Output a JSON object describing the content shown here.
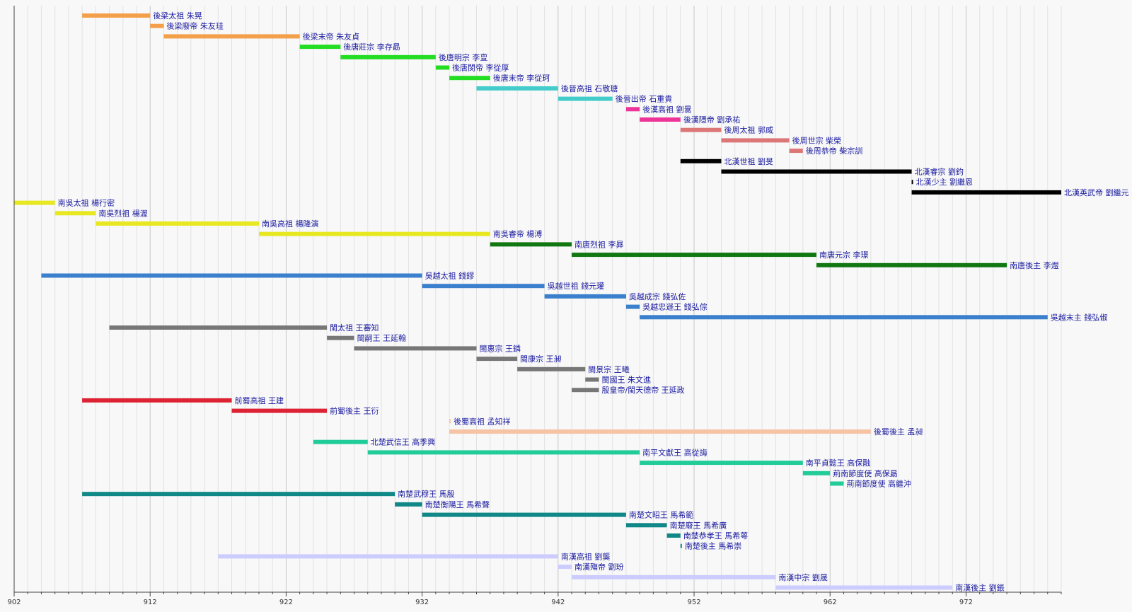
{
  "chart_data": {
    "type": "timeline",
    "xlim": [
      902,
      979
    ],
    "x_ticks": [
      902,
      912,
      922,
      932,
      942,
      952,
      962,
      972
    ],
    "grid": true,
    "bars": [
      {
        "label": "後梁太祖  朱晃",
        "start": 907,
        "end": 912,
        "color": "#f4a04a"
      },
      {
        "label": "後梁廢帝  朱友珪",
        "start": 912,
        "end": 913,
        "color": "#f4a04a"
      },
      {
        "label": "後梁末帝  朱友貞",
        "start": 913,
        "end": 923,
        "color": "#f4a04a"
      },
      {
        "label": "後唐莊宗  李存勗",
        "start": 923,
        "end": 926,
        "color": "#22dd22"
      },
      {
        "label": "後唐明宗  李亶",
        "start": 926,
        "end": 933,
        "color": "#22dd22"
      },
      {
        "label": "後唐閔帝  李從厚",
        "start": 933,
        "end": 934,
        "color": "#22dd22"
      },
      {
        "label": "後唐末帝  李從珂",
        "start": 934,
        "end": 937,
        "color": "#22dd22"
      },
      {
        "label": "後晉高祖  石敬瑭",
        "start": 936,
        "end": 942,
        "color": "#44cccc"
      },
      {
        "label": "後晉出帝  石重貴",
        "start": 942,
        "end": 946,
        "color": "#44cccc"
      },
      {
        "label": "後漢高祖  劉暠",
        "start": 947,
        "end": 948,
        "color": "#ee3399"
      },
      {
        "label": "後漢隱帝  劉承祐",
        "start": 948,
        "end": 951,
        "color": "#ee3399"
      },
      {
        "label": "後周太祖  郭威",
        "start": 951,
        "end": 954,
        "color": "#dd7777"
      },
      {
        "label": "後周世宗  柴榮",
        "start": 954,
        "end": 959,
        "color": "#dd7777"
      },
      {
        "label": "後周恭帝  柴宗訓",
        "start": 959,
        "end": 960,
        "color": "#dd7777"
      },
      {
        "label": "北漢世祖  劉旻",
        "start": 951,
        "end": 954,
        "color": "#000000"
      },
      {
        "label": "北漢睿宗  劉鈞",
        "start": 954,
        "end": 968,
        "color": "#000000"
      },
      {
        "label": "北漢少主  劉繼恩",
        "start": 968,
        "end": 968.1,
        "color": "#000000"
      },
      {
        "label": "北漢英武帝  劉繼元",
        "start": 968,
        "end": 979,
        "color": "#000000"
      },
      {
        "label": "南吳太祖  楊行密",
        "start": 902,
        "end": 905,
        "color": "#e8e822"
      },
      {
        "label": "南吳烈祖  楊渥",
        "start": 905,
        "end": 908,
        "color": "#e8e822"
      },
      {
        "label": "南吳高祖  楊隆演",
        "start": 908,
        "end": 920,
        "color": "#e8e822"
      },
      {
        "label": "南吳睿帝  楊溥",
        "start": 920,
        "end": 937,
        "color": "#e8e822"
      },
      {
        "label": "南唐烈祖  李昪",
        "start": 937,
        "end": 943,
        "color": "#117711"
      },
      {
        "label": "南唐元宗  李璟",
        "start": 943,
        "end": 961,
        "color": "#117711"
      },
      {
        "label": "南唐後主  李煜",
        "start": 961,
        "end": 975,
        "color": "#117711"
      },
      {
        "label": "吳越太祖  錢鏐",
        "start": 904,
        "end": 932,
        "color": "#3a80cc"
      },
      {
        "label": "吳越世祖  錢元瓘",
        "start": 932,
        "end": 941,
        "color": "#3a80cc"
      },
      {
        "label": "吳越成宗  錢弘佐",
        "start": 941,
        "end": 947,
        "color": "#3a80cc"
      },
      {
        "label": "吳越忠遜王  錢弘倧",
        "start": 947,
        "end": 948,
        "color": "#3a80cc"
      },
      {
        "label": "吳越末主  錢弘俶",
        "start": 948,
        "end": 978,
        "color": "#3a80cc"
      },
      {
        "label": "閩太祖  王審知",
        "start": 909,
        "end": 925,
        "color": "#777777"
      },
      {
        "label": "閩嗣王  王延翰",
        "start": 925,
        "end": 927,
        "color": "#777777"
      },
      {
        "label": "閩惠宗  王鏻",
        "start": 927,
        "end": 936,
        "color": "#777777"
      },
      {
        "label": "閩康宗  王昶",
        "start": 936,
        "end": 939,
        "color": "#777777"
      },
      {
        "label": "閩景宗  王曦",
        "start": 939,
        "end": 944,
        "color": "#777777"
      },
      {
        "label": "閩國王  朱文進",
        "start": 944,
        "end": 945,
        "color": "#777777"
      },
      {
        "label": "殷皇帝/閩天德帝  王延政",
        "start": 943,
        "end": 945,
        "color": "#777777"
      },
      {
        "label": "前蜀高祖  王建",
        "start": 907,
        "end": 918,
        "color": "#dd2233"
      },
      {
        "label": "前蜀後主  王衍",
        "start": 918,
        "end": 925,
        "color": "#dd2233"
      },
      {
        "label": "後蜀高祖  孟知祥",
        "start": 934,
        "end": 934,
        "color": "#f6c4a4"
      },
      {
        "label": "後蜀後主  孟昶",
        "start": 934,
        "end": 965,
        "color": "#f6c4a4"
      },
      {
        "label": "北楚武信王  高季興",
        "start": 924,
        "end": 928,
        "color": "#22cc99"
      },
      {
        "label": "南平文獻王  高從誨",
        "start": 928,
        "end": 948,
        "color": "#22cc99"
      },
      {
        "label": "南平貞懿王  高保融",
        "start": 948,
        "end": 960,
        "color": "#22cc99"
      },
      {
        "label": "荊南節度使  高保勗",
        "start": 960,
        "end": 962,
        "color": "#22cc99"
      },
      {
        "label": "荊南節度使  高繼沖",
        "start": 962,
        "end": 963,
        "color": "#22cc99"
      },
      {
        "label": "南楚武穆王  馬殷",
        "start": 907,
        "end": 930,
        "color": "#118888"
      },
      {
        "label": "南楚衡陽王  馬希聲",
        "start": 930,
        "end": 932,
        "color": "#118888"
      },
      {
        "label": "南楚文昭王  馬希範",
        "start": 932,
        "end": 947,
        "color": "#118888"
      },
      {
        "label": "南楚廢王  馬希廣",
        "start": 947,
        "end": 950,
        "color": "#118888"
      },
      {
        "label": "南楚恭孝王  馬希萼",
        "start": 950,
        "end": 951,
        "color": "#118888"
      },
      {
        "label": "南楚後主  馬希崇",
        "start": 951,
        "end": 951.05,
        "color": "#118888"
      },
      {
        "label": "南漢高祖  劉龑",
        "start": 917,
        "end": 942,
        "color": "#ccccff"
      },
      {
        "label": "南漢殤帝  劉玢",
        "start": 942,
        "end": 943,
        "color": "#ccccff"
      },
      {
        "label": "南漢中宗  劉晟",
        "start": 943,
        "end": 958,
        "color": "#ccccff"
      },
      {
        "label": "南漢後主  劉鋹",
        "start": 958,
        "end": 971,
        "color": "#ccccff"
      }
    ]
  }
}
